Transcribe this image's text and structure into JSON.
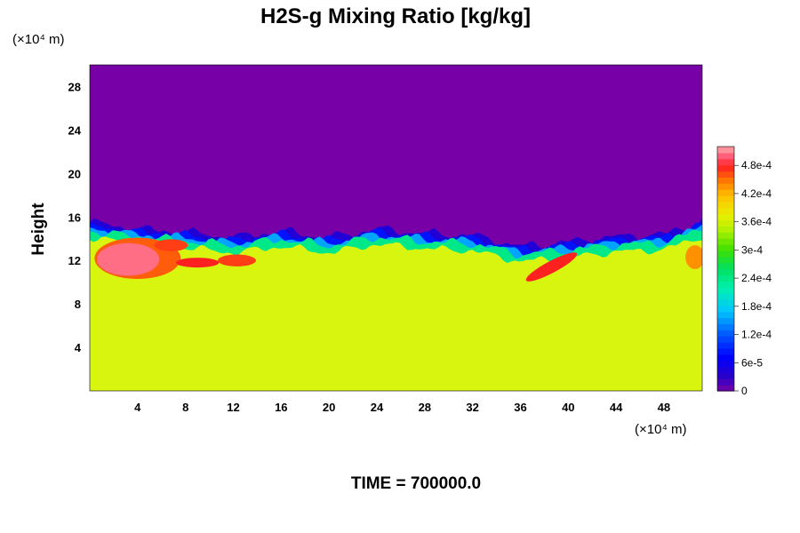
{
  "chart_data": {
    "type": "heatmap",
    "title": "H2S-g Mixing Ratio [kg/kg]",
    "xlabel": "",
    "ylabel": "Height",
    "x_unit": "(×10⁴ m)",
    "y_unit": "(×10⁴ m)",
    "xlim": [
      0,
      51.2
    ],
    "ylim": [
      0,
      30
    ],
    "x_ticks": [
      "4",
      "8",
      "12",
      "16",
      "20",
      "24",
      "28",
      "32",
      "36",
      "40",
      "44",
      "48"
    ],
    "y_ticks": [
      "4",
      "8",
      "12",
      "16",
      "20",
      "24",
      "28"
    ],
    "colorbar": {
      "range": [
        0,
        0.00052
      ],
      "tick_labels": [
        "0",
        "6e-5",
        "1.2e-4",
        "1.8e-4",
        "2.4e-4",
        "3e-4",
        "3.6e-4",
        "4.2e-4",
        "4.8e-4"
      ],
      "tick_values": [
        0,
        6e-05,
        0.00012,
        0.00018,
        0.00024,
        0.0003,
        0.00036,
        0.00042,
        0.00048
      ]
    },
    "field_summary": {
      "background_value": 0.0,
      "lower_layer_value": 0.00034,
      "interface_height_profile": {
        "x": [
          0,
          4,
          8,
          12,
          16,
          20,
          24,
          28,
          32,
          36,
          40,
          44,
          48,
          51.2
        ],
        "height": [
          14.6,
          14.0,
          13.7,
          13.2,
          13.8,
          13.2,
          14.0,
          13.6,
          13.4,
          12.4,
          12.8,
          13.3,
          13.5,
          14.7
        ]
      }
    },
    "colors": {
      "background": "#7700a6",
      "lower_layer": "#d8f510"
    }
  },
  "footer": "TIME = 700000.0"
}
